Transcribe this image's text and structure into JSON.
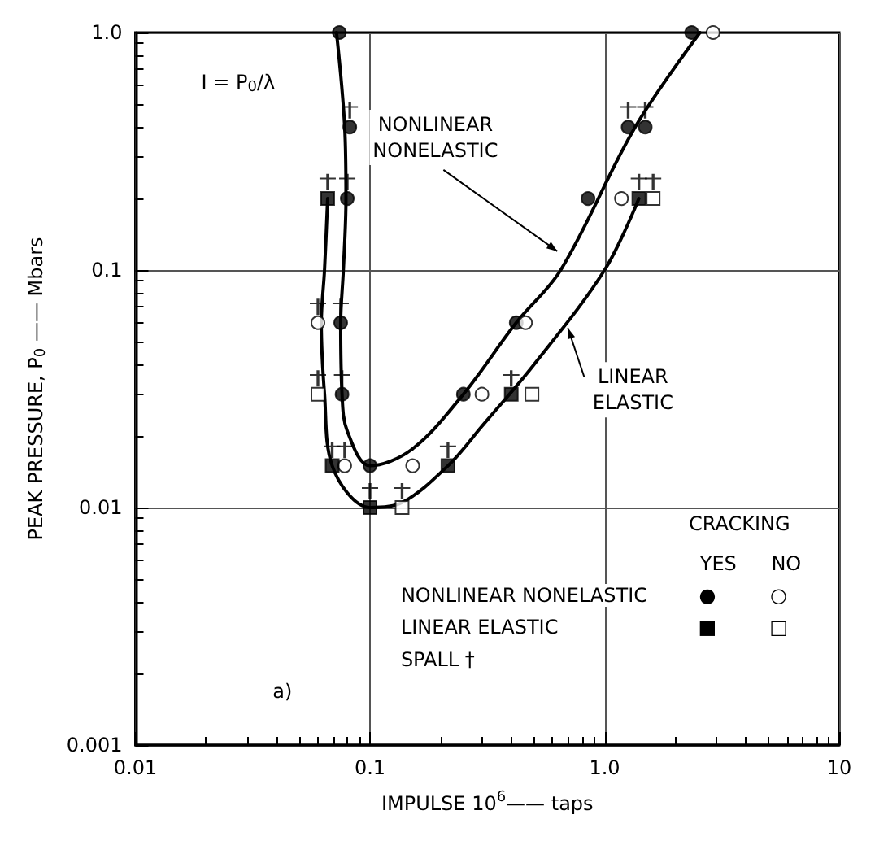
{
  "chart_data": {
    "type": "scatter",
    "xlabel": "IMPULSE 10$^{6}$—— taps",
    "ylabel": "PEAK PRESSURE, P$_{0}$ —— Mbars",
    "log": "xy",
    "grid": true,
    "xlim": [
      0.01,
      10
    ],
    "xticks": [
      0.01,
      0.1,
      {
        "value": 1,
        "label": "1.0"
      },
      10
    ],
    "ylim": [
      0.001,
      1
    ],
    "yticks": [
      0.001,
      0.01,
      0.1,
      {
        "value": 1,
        "label": "1.0"
      }
    ],
    "series": [
      {
        "type": "line",
        "color": "#000000",
        "marker": "none",
        "x": [
          0.072,
          0.078,
          0.079,
          0.077,
          0.075,
          0.076,
          0.08,
          0.1,
          0.15,
          0.25,
          0.42,
          0.65,
          1.35,
          2.55
        ],
        "values": [
          1.0,
          0.4,
          0.2,
          0.1,
          0.06,
          0.03,
          0.021,
          0.015,
          0.0175,
          0.03,
          0.06,
          0.1,
          0.4,
          1.0
        ]
      },
      {
        "type": "line",
        "color": "#000000",
        "marker": "none",
        "x": [
          0.066,
          0.064,
          0.062,
          0.064,
          0.069,
          0.1,
          0.137,
          0.215,
          0.3,
          0.5,
          1.0,
          1.4
        ],
        "values": [
          0.2,
          0.1,
          0.06,
          0.03,
          0.015,
          0.01,
          0.0105,
          0.015,
          0.022,
          0.04,
          0.1,
          0.2
        ]
      },
      {
        "color": "#000000",
        "marker": "circle",
        "x": [
          0.074,
          0.082,
          0.08,
          0.075,
          0.076,
          0.1,
          0.25,
          0.42,
          0.85,
          1.26,
          1.49,
          2.35
        ],
        "values": [
          1.0,
          0.4,
          0.2,
          0.06,
          0.03,
          0.015,
          0.03,
          0.06,
          0.2,
          0.4,
          0.4,
          1.0
        ]
      },
      {
        "color": "#ffffff",
        "marker": "circle",
        "x": [
          0.06,
          0.078,
          0.152,
          0.3,
          0.46,
          1.18,
          2.9
        ],
        "values": [
          0.06,
          0.015,
          0.015,
          0.03,
          0.06,
          0.2,
          1.0
        ]
      },
      {
        "color": "#000000",
        "marker": "square",
        "x": [
          0.066,
          0.069,
          0.1,
          0.215,
          0.4,
          1.4
        ],
        "values": [
          0.2,
          0.015,
          0.01,
          0.015,
          0.03,
          0.2
        ]
      },
      {
        "color": "#ffffff",
        "marker": "square",
        "x": [
          0.06,
          0.137,
          0.49,
          1.61
        ],
        "values": [
          0.03,
          0.01,
          0.03,
          0.2
        ]
      },
      {
        "color": "#000000",
        "marker": "cross",
        "x": [
          0.082,
          0.08,
          0.075,
          0.076,
          1.26,
          1.49,
          0.06,
          0.078,
          0.066,
          0.069,
          0.1,
          0.215,
          0.4,
          1.4,
          0.06,
          0.137,
          1.61
        ],
        "values": [
          0.47,
          0.235,
          0.07,
          0.035,
          0.47,
          0.47,
          0.07,
          0.0175,
          0.235,
          0.0175,
          0.0117,
          0.0175,
          0.035,
          0.235,
          0.035,
          0.0117,
          0.235
        ]
      }
    ],
    "annotations": [
      "I = P$_{0}$/λ",
      "CRACKING",
      "YES",
      "NO",
      "NONLINEAR NONELASTIC",
      "LINEAR ELASTIC",
      "SPALL †",
      "a)",
      "●",
      "○",
      "■",
      "□",
      {
        "text": "NONLINEAR\nNONELASTIC",
        "x": 0.65,
        "y": 0.12
      },
      {
        "text": "LINEAR\nELASTIC",
        "x": 0.72,
        "y": 0.057
      }
    ]
  }
}
